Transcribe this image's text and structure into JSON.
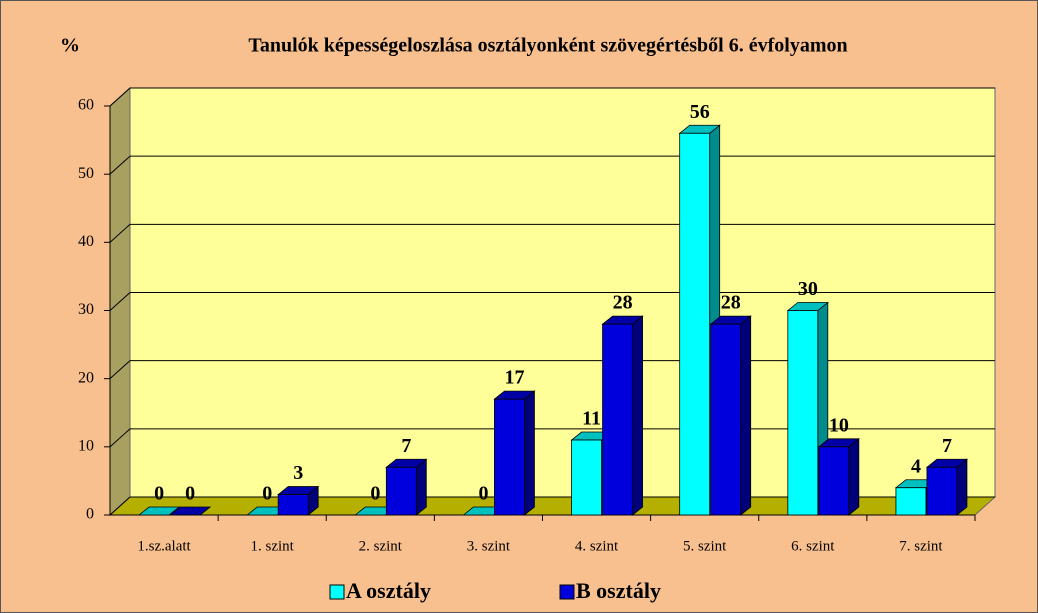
{
  "chart_data": {
    "type": "bar3d",
    "title": "Tanulók képességeloszlása osztályonként szövegértésből 6. évfolyamon",
    "y_label": "%",
    "categories": [
      "1.sz.alatt",
      "1. szint",
      "2. szint",
      "3. szint",
      "4. szint",
      "5. szint",
      "6. szint",
      "7. szint"
    ],
    "series": [
      {
        "name": "A osztály",
        "color": "#00ffff",
        "values": [
          0,
          0,
          0,
          0,
          11,
          56,
          30,
          4
        ]
      },
      {
        "name": "B osztály",
        "color": "#0000dd",
        "values": [
          0,
          3,
          7,
          17,
          28,
          28,
          10,
          7
        ]
      }
    ],
    "ylim": [
      0,
      60
    ],
    "yticks": [
      0,
      10,
      20,
      30,
      40,
      50,
      60
    ],
    "grid": true,
    "legend": "bottom"
  }
}
